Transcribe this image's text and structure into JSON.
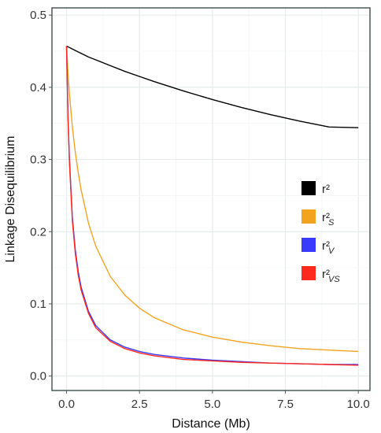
{
  "chart_data": {
    "type": "line",
    "title": "",
    "xlabel": "Distance (Mb)",
    "ylabel": "Linkage Disequilibrium",
    "xlim": [
      -0.5,
      10.4
    ],
    "ylim": [
      -0.02,
      0.51
    ],
    "x_ticks": [
      "0.0",
      "2.5",
      "5.0",
      "7.5",
      "10.0"
    ],
    "x_tick_values": [
      0,
      2.5,
      5,
      7.5,
      10
    ],
    "y_ticks": [
      "0.0",
      "0.1",
      "0.2",
      "0.3",
      "0.4",
      "0.5"
    ],
    "y_tick_values": [
      0,
      0.1,
      0.2,
      0.3,
      0.4,
      0.5
    ],
    "grid": true,
    "legend_position": "right",
    "x": [
      0,
      0.05,
      0.1,
      0.2,
      0.3,
      0.4,
      0.5,
      0.75,
      1,
      1.5,
      2,
      2.5,
      3,
      4,
      5,
      6,
      7,
      8,
      9,
      10
    ],
    "series": [
      {
        "name": "r²",
        "label_base": "r²",
        "label_sub": "",
        "color": "#000000",
        "values": [
          0.457,
          0.4561,
          0.455,
          0.453,
          0.451,
          0.449,
          0.447,
          0.442,
          0.438,
          0.43,
          0.422,
          0.415,
          0.408,
          0.395,
          0.383,
          0.372,
          0.362,
          0.353,
          0.345,
          0.344
        ]
      },
      {
        "name": "r²S",
        "label_base": "r²",
        "label_sub": "S",
        "color": "#f2a31f",
        "values": [
          0.457,
          0.42,
          0.39,
          0.345,
          0.31,
          0.282,
          0.258,
          0.212,
          0.18,
          0.138,
          0.112,
          0.094,
          0.081,
          0.064,
          0.054,
          0.047,
          0.042,
          0.038,
          0.036,
          0.034
        ]
      },
      {
        "name": "r²V",
        "label_base": "r²",
        "label_sub": "V",
        "color": "#3a3aff",
        "values": [
          0.457,
          0.36,
          0.3,
          0.22,
          0.175,
          0.145,
          0.123,
          0.09,
          0.07,
          0.05,
          0.04,
          0.034,
          0.03,
          0.025,
          0.022,
          0.02,
          0.018,
          0.017,
          0.016,
          0.016
        ]
      },
      {
        "name": "r²VS",
        "label_base": "r²",
        "label_sub": "VS",
        "color": "#ff2a1f",
        "values": [
          0.457,
          0.355,
          0.295,
          0.215,
          0.17,
          0.14,
          0.119,
          0.087,
          0.067,
          0.048,
          0.038,
          0.032,
          0.028,
          0.023,
          0.021,
          0.019,
          0.018,
          0.017,
          0.016,
          0.015
        ]
      }
    ]
  }
}
